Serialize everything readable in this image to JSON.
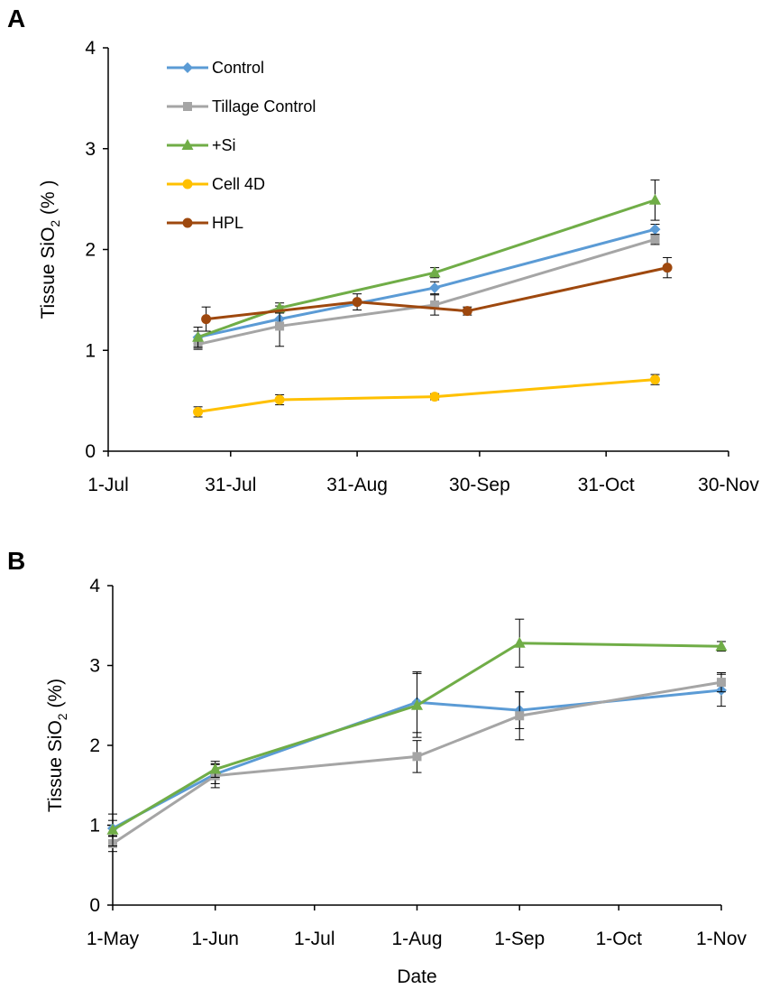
{
  "colors": {
    "Control": "#5b9bd5",
    "Tillage Control": "#a5a5a5",
    "+Si": "#70ad47",
    "Cell 4D": "#ffc000",
    "HPL": "#9e480e",
    "axis": "#000000"
  },
  "chart_data": [
    {
      "panel": "A",
      "type": "line",
      "title": "",
      "xlabel": "",
      "ylabel": "Tissue SiO2 (% )",
      "ylabel_main": "Tissue SiO",
      "ylabel_sub": "2",
      "ylabel_tail": " (% )",
      "xlim": [
        0,
        152
      ],
      "ylim": [
        0,
        4
      ],
      "x_ticks": [
        0,
        30,
        61,
        91,
        122,
        152
      ],
      "x_tick_labels": [
        "1-Jul",
        "31-Jul",
        "31-Aug",
        "30-Sep",
        "31-Oct",
        "30-Nov"
      ],
      "y_ticks": [
        0,
        1,
        2,
        3,
        4
      ],
      "y_tick_labels": [
        "0",
        "1",
        "2",
        "3",
        "4"
      ],
      "grid": false,
      "legend": [
        "Control",
        "Tillage Control",
        "+Si",
        "Cell 4D",
        "HPL"
      ],
      "legend_position": "top-left",
      "series": [
        {
          "name": "Control",
          "marker": "diamond",
          "x": [
            22,
            42,
            80,
            134
          ],
          "y": [
            1.13,
            1.31,
            1.62,
            2.2
          ],
          "err": [
            0.06,
            0.06,
            0.06,
            0.05
          ]
        },
        {
          "name": "Tillage Control",
          "marker": "square",
          "x": [
            22,
            42,
            80,
            134
          ],
          "y": [
            1.06,
            1.24,
            1.45,
            2.1
          ],
          "err": [
            0.05,
            0.2,
            0.1,
            0.05
          ]
        },
        {
          "name": "+Si",
          "marker": "triangle",
          "x": [
            22,
            42,
            80,
            134
          ],
          "y": [
            1.13,
            1.42,
            1.77,
            2.49
          ],
          "err": [
            0.1,
            0.05,
            0.05,
            0.2
          ]
        },
        {
          "name": "Cell 4D",
          "marker": "circle",
          "x": [
            22,
            42,
            80,
            134
          ],
          "y": [
            0.39,
            0.51,
            0.54,
            0.71
          ],
          "err": [
            0.05,
            0.05,
            0.03,
            0.05
          ]
        },
        {
          "name": "HPL",
          "marker": "circle",
          "x": [
            24,
            61,
            88,
            137
          ],
          "y": [
            1.31,
            1.48,
            1.39,
            1.82
          ],
          "err": [
            0.12,
            0.08,
            0.04,
            0.1
          ]
        }
      ]
    },
    {
      "panel": "B",
      "type": "line",
      "title": "",
      "xlabel": "Date",
      "ylabel": "Tissue SiO2 (%)",
      "ylabel_main": "Tissue SiO",
      "ylabel_sub": "2",
      "ylabel_tail": " (%)",
      "xlim": [
        0,
        184
      ],
      "ylim": [
        0,
        4
      ],
      "x_ticks": [
        0,
        31,
        61,
        92,
        123,
        153,
        184
      ],
      "x_tick_labels": [
        "1-May",
        "1-Jun",
        "1-Jul",
        "1-Aug",
        "1-Sep",
        "1-Oct",
        "1-Nov"
      ],
      "y_ticks": [
        0,
        1,
        2,
        3,
        4
      ],
      "y_tick_labels": [
        "0",
        "1",
        "2",
        "3",
        "4"
      ],
      "grid": false,
      "legend": [],
      "series": [
        {
          "name": "Control",
          "marker": "diamond",
          "x": [
            0,
            31,
            92,
            123,
            184
          ],
          "y": [
            0.96,
            1.64,
            2.54,
            2.44,
            2.69
          ],
          "err": [
            0.1,
            0.12,
            0.38,
            0.23,
            0.2
          ]
        },
        {
          "name": "Tillage Control",
          "marker": "square",
          "x": [
            0,
            31,
            92,
            123,
            184
          ],
          "y": [
            0.77,
            1.62,
            1.86,
            2.37,
            2.79
          ],
          "err": [
            0.1,
            0.15,
            0.2,
            0.3,
            0.12
          ]
        },
        {
          "name": "+Si",
          "marker": "triangle",
          "x": [
            0,
            31,
            92,
            123,
            184
          ],
          "y": [
            0.94,
            1.7,
            2.5,
            3.28,
            3.24
          ],
          "err": [
            0.2,
            0.1,
            0.4,
            0.3,
            0.06
          ]
        }
      ]
    }
  ]
}
